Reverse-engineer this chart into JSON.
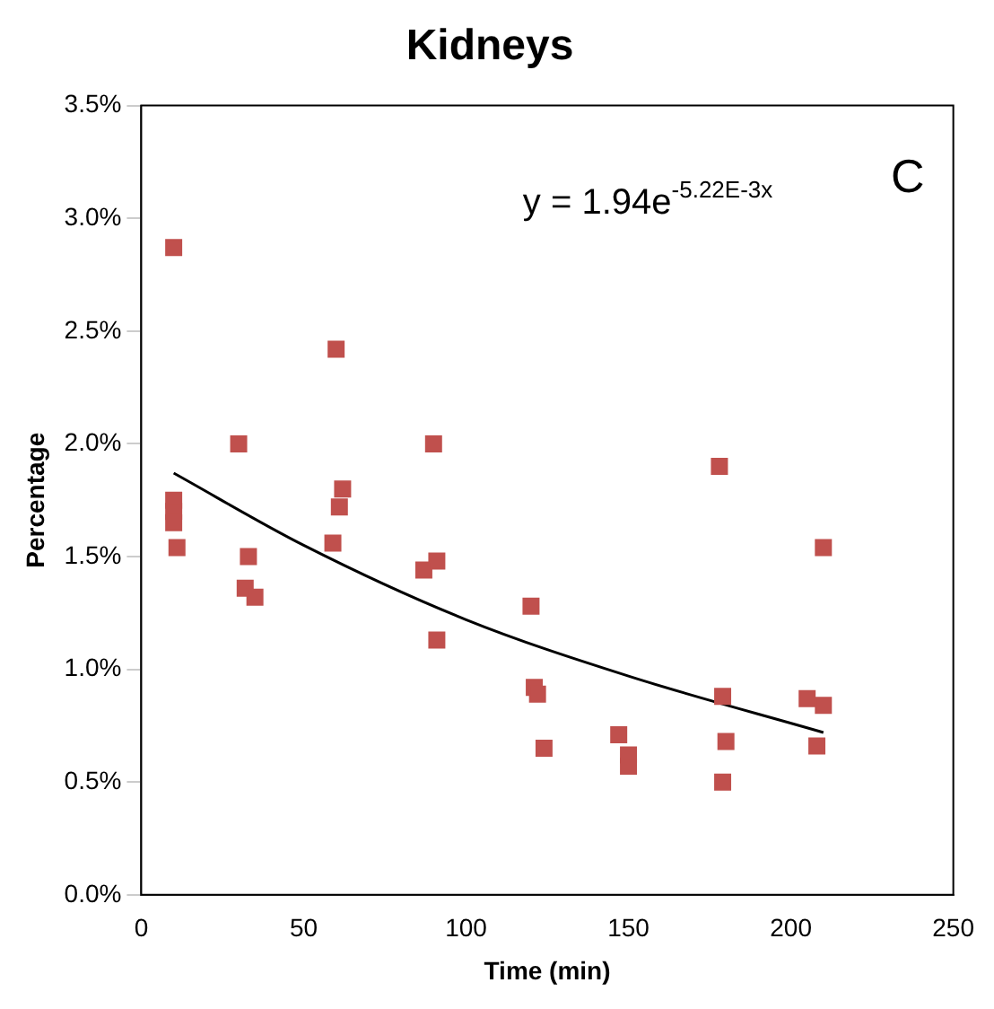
{
  "chart_data": {
    "type": "scatter",
    "title": "Kidneys",
    "xlabel": "Time (min)",
    "ylabel": "Percentage",
    "marker": "square",
    "xlim": [
      0,
      250
    ],
    "xticks": [
      0,
      50,
      100,
      150,
      200,
      250
    ],
    "ylim": [
      0,
      3.5
    ],
    "yticks": [
      {
        "value": 0,
        "label": "0.0%"
      },
      {
        "value": 0.5,
        "label": "0.5%"
      },
      {
        "value": 1,
        "label": "1.0%"
      },
      {
        "value": 1.5,
        "label": "1.5%"
      },
      {
        "value": 2,
        "label": "2.0%"
      },
      {
        "value": 2.5,
        "label": "2.5%"
      },
      {
        "value": 3,
        "label": "3.0%"
      },
      {
        "value": 3.5,
        "label": "3.5%"
      }
    ],
    "grid": false,
    "legend": false,
    "annotations": [
      "C",
      "y = 1.94e$^{-5.22E-3x}$"
    ],
    "series": [
      {
        "color": "#c0504d",
        "x": [
          10,
          10,
          10,
          10,
          11,
          30,
          33,
          32,
          35,
          60,
          62,
          61,
          59,
          90,
          91,
          87,
          91,
          120,
          121,
          122,
          124,
          147,
          150,
          150,
          178,
          179,
          180,
          179,
          205,
          210,
          208,
          210
        ],
        "values": [
          2.87,
          1.75,
          1.7,
          1.65,
          1.54,
          2.0,
          1.5,
          1.36,
          1.32,
          2.42,
          1.8,
          1.72,
          1.56,
          2.0,
          1.48,
          1.44,
          1.13,
          1.28,
          0.92,
          0.89,
          0.65,
          0.71,
          0.62,
          0.57,
          1.9,
          0.88,
          0.68,
          0.5,
          0.87,
          0.84,
          0.66,
          1.54
        ]
      },
      {
        "type": "line",
        "color": "#000000",
        "marker": "none",
        "x": [
          10,
          50,
          100,
          150,
          210
        ],
        "values": [
          1.87,
          1.55,
          1.22,
          0.97,
          0.72
        ]
      }
    ]
  }
}
